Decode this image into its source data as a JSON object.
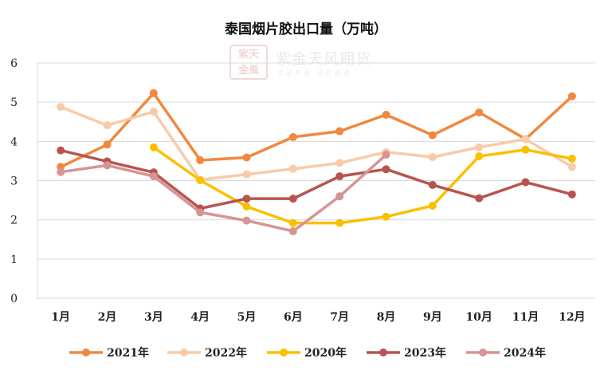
{
  "chart_data": {
    "type": "line",
    "title": "泰国烟片胶出口量（万吨）",
    "categories": [
      "1月",
      "2月",
      "3月",
      "4月",
      "5月",
      "6月",
      "7月",
      "8月",
      "9月",
      "10月",
      "11月",
      "12月"
    ],
    "ylim": [
      0,
      6
    ],
    "yticks": [
      0,
      1,
      2,
      3,
      4,
      5,
      6
    ],
    "xlabel": "",
    "ylabel": "",
    "grid": true,
    "legend_position": "bottom",
    "series": [
      {
        "name": "2021年",
        "color": "#f0883f",
        "values": [
          3.35,
          3.92,
          5.23,
          3.52,
          3.59,
          4.11,
          4.26,
          4.68,
          4.16,
          4.74,
          4.06,
          5.15
        ]
      },
      {
        "name": "2022年",
        "color": "#f8cba8",
        "values": [
          4.88,
          4.41,
          4.76,
          3.02,
          3.16,
          3.3,
          3.45,
          3.73,
          3.6,
          3.85,
          4.06,
          3.35
        ]
      },
      {
        "name": "2020年",
        "color": "#fac000",
        "values": [
          null,
          null,
          3.85,
          3.01,
          2.34,
          1.92,
          1.92,
          2.08,
          2.36,
          3.62,
          3.79,
          3.56
        ]
      },
      {
        "name": "2023年",
        "color": "#b85450",
        "values": [
          3.77,
          3.49,
          3.21,
          2.29,
          2.54,
          2.54,
          3.11,
          3.29,
          2.89,
          2.55,
          2.96,
          2.65
        ]
      },
      {
        "name": "2024年",
        "color": "#d69494",
        "values": [
          3.22,
          3.39,
          3.11,
          2.19,
          1.98,
          1.71,
          2.6,
          3.66,
          null,
          null,
          null,
          null
        ]
      }
    ]
  },
  "watermark": {
    "logo_line1": "紫天",
    "logo_line2": "金風",
    "name": "紫金天风期货",
    "slogan": "立足产业 研究驱动"
  }
}
